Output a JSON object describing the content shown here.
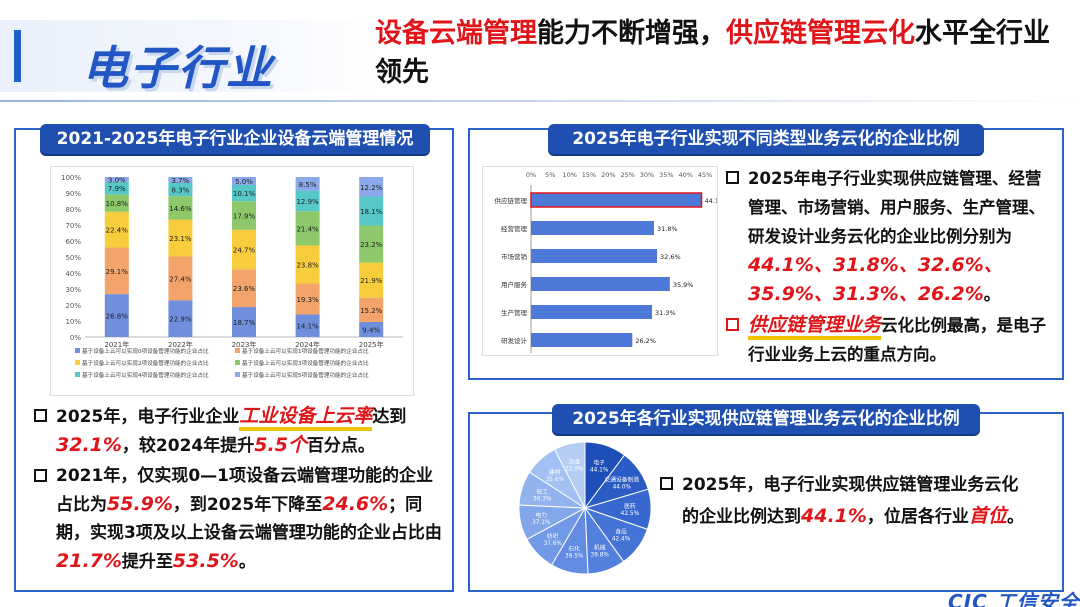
{
  "header": {
    "section_title": "电子行业",
    "headline": {
      "part1_red": "设备云端管理",
      "part2": "能力不断增强，",
      "part3_red": "供应链管理云化",
      "part4": "水平全行业领先"
    }
  },
  "panel_left": {
    "title": "2021-2025年电子行业企业设备云端管理情况",
    "bullets": [
      {
        "t1": "2025年，电子行业企业",
        "hl1": "工业设备上云率",
        "t2": "达到",
        "hl2": "32.1%",
        "t3": "，较2024年提升",
        "hl3": "5.5个",
        "t4": "百分点。"
      },
      {
        "t1": "2021年，仅实现0—1项设备云端管理功能的企业占比为",
        "hl1": "55.9%",
        "t2": "，到2025年下降至",
        "hl2": "24.6%",
        "t3": "；同期，实现3项及以上设备云端管理功能的企业占比由",
        "hl3": "21.7%",
        "t4": "提升至",
        "hl4": "53.5%",
        "t5": "。"
      }
    ]
  },
  "panel_right_top": {
    "title": "2025年电子行业实现不同类型业务云化的企业比例",
    "bullet1": {
      "t1": "2025年电子行业实现供应链管理、经营管理、市场营销、用户服务、生产管理、研发设计业务云化的企业比例分别为",
      "hl": "44.1%、31.8%、32.6%、35.9%、31.3%、26.2%",
      "t2": "。"
    },
    "bullet2": {
      "hl": "供应链管理业务",
      "t1": "云化比例最高，是电子行业业务上云的重点方向。"
    }
  },
  "panel_right_bottom": {
    "title": "2025年各行业实现供应链管理业务云化的企业比例",
    "bullet": {
      "t1": "2025年，电子行业实现供应链管理业务云化的企业比例达到",
      "hl1": "44.1%",
      "t2": "，位居各行业",
      "hl2": "首位",
      "t3": "。"
    }
  },
  "footer": {
    "logo_text": "CIC 工信安全"
  },
  "colors": {
    "accent": "#2156c4",
    "highlight": "#e0151a",
    "panel_border": "#2d62c8"
  },
  "chart_data": [
    {
      "type": "bar",
      "stacked": true,
      "categories": [
        "2021年",
        "2022年",
        "2023年",
        "2024年",
        "2025年"
      ],
      "ylim": [
        0,
        100
      ],
      "yticks": [
        "0%",
        "10%",
        "20%",
        "30%",
        "40%",
        "50%",
        "60%",
        "70%",
        "80%",
        "90%",
        "100%"
      ],
      "series": [
        {
          "name": "基于设备上云可以实现0项设备管理功能的企业占比",
          "color": "#6f8fdc",
          "values": [
            26.8,
            22.9,
            18.7,
            14.1,
            9.4
          ],
          "labels": [
            "26.8%",
            "22.9%",
            "18.7%",
            "14.1%",
            "9.4%"
          ]
        },
        {
          "name": "基于设备上云可以实现1项设备管理功能的企业占比",
          "color": "#f2a46a",
          "values": [
            29.1,
            27.4,
            23.6,
            19.3,
            15.2
          ],
          "labels": [
            "29.1%",
            "27.4%",
            "23.6%",
            "19.3%",
            "15.2%"
          ]
        },
        {
          "name": "基于设备上云可以实现2项设备管理功能的企业占比",
          "color": "#f7cd3e",
          "values": [
            22.4,
            23.1,
            24.7,
            23.8,
            21.9
          ],
          "labels": [
            "22.4%",
            "23.1%",
            "24.7%",
            "23.8%",
            "21.9%"
          ]
        },
        {
          "name": "基于设备上云可以实现3项设备管理功能的企业占比",
          "color": "#8dc96a",
          "values": [
            10.8,
            14.6,
            17.9,
            21.4,
            23.2
          ],
          "labels": [
            "10.8%",
            "14.6%",
            "17.9%",
            "21.4%",
            "23.2%"
          ]
        },
        {
          "name": "基于设备上云可以实现4项设备管理功能的企业占比",
          "color": "#56c8c8",
          "values": [
            7.9,
            8.3,
            10.1,
            12.9,
            18.1
          ],
          "labels": [
            "7.9%",
            "8.3%",
            "10.1%",
            "12.9%",
            "18.1%"
          ]
        },
        {
          "name": "基于设备上云可以实现5项设备管理功能的企业占比",
          "color": "#8aa8ea",
          "values": [
            3.0,
            3.7,
            5.0,
            8.5,
            12.2
          ],
          "labels": [
            "3.0%",
            "3.7%",
            "5.0%",
            "8.5%",
            "12.2%"
          ]
        }
      ]
    },
    {
      "type": "bar",
      "orientation": "horizontal",
      "categories": [
        "供应链管理",
        "经营管理",
        "市场营销",
        "用户服务",
        "生产管理",
        "研发设计"
      ],
      "values": [
        44.1,
        31.8,
        32.6,
        35.9,
        31.3,
        26.2
      ],
      "labels": [
        "44.1%",
        "31.8%",
        "32.6%",
        "35.9%",
        "31.3%",
        "26.2%"
      ],
      "xlim": [
        0,
        45
      ],
      "xticks": [
        "0%",
        "5%",
        "10%",
        "15%",
        "20%",
        "25%",
        "30%",
        "35%",
        "40%",
        "45%"
      ],
      "highlight_category": "供应链管理"
    },
    {
      "type": "pie",
      "categories": [
        "电子",
        "交通设备制造",
        "医药",
        "食品",
        "机械",
        "石化",
        "纺织",
        "电力",
        "轻工",
        "建材",
        "冶金"
      ],
      "values": [
        44.1,
        44.0,
        42.5,
        42.4,
        39.8,
        39.5,
        37.6,
        37.1,
        36.3,
        35.6,
        32.9
      ],
      "labels": [
        "44.1%",
        "44.0%",
        "42.5%",
        "42.4%",
        "39.8%",
        "39.5%",
        "37.6%",
        "37.1%",
        "36.3%",
        "35.6%",
        "32.9%"
      ]
    }
  ]
}
